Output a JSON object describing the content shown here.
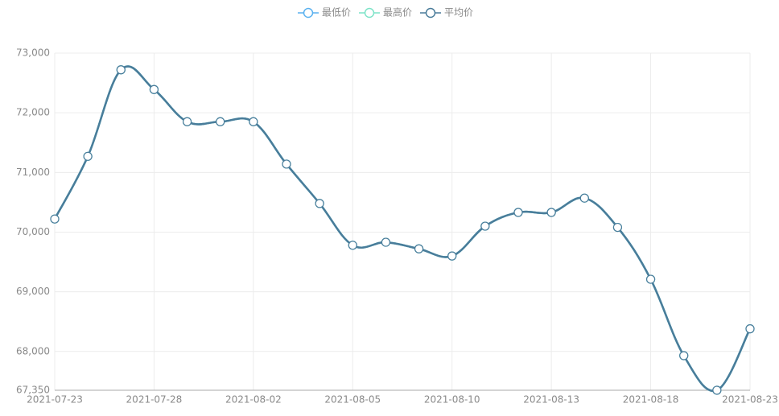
{
  "chart_data": {
    "type": "line",
    "categories": [
      "2021-07-23",
      null,
      null,
      "2021-07-28",
      null,
      null,
      "2021-08-02",
      null,
      null,
      "2021-08-05",
      null,
      null,
      "2021-08-10",
      null,
      null,
      "2021-08-13",
      null,
      null,
      "2021-08-18",
      null,
      null,
      "2021-08-23"
    ],
    "series": [
      {
        "name": "最低价",
        "color": "#5ab1ef",
        "values": [
          70220,
          71270,
          72720,
          72390,
          71850,
          71850,
          71850,
          71140,
          70480,
          69780,
          69830,
          69720,
          69600,
          70100,
          70330,
          70330,
          70570,
          70080,
          69210,
          67930,
          67350,
          68380
        ]
      },
      {
        "name": "最高价",
        "color": "#7ee3c8",
        "values": [
          70220,
          71270,
          72720,
          72390,
          71850,
          71850,
          71850,
          71140,
          70480,
          69780,
          69830,
          69720,
          69600,
          70100,
          70330,
          70330,
          70570,
          70080,
          69210,
          67930,
          67350,
          68380
        ]
      },
      {
        "name": "平均价",
        "color": "#4a7c9a",
        "values": [
          70220,
          71270,
          72720,
          72390,
          71850,
          71850,
          71850,
          71140,
          70480,
          69780,
          69830,
          69720,
          69600,
          70100,
          70330,
          70330,
          70570,
          70080,
          69210,
          67930,
          67350,
          68380
        ]
      }
    ],
    "ylim": [
      67350,
      73000
    ],
    "yticks": [
      {
        "value": 67350,
        "label": "67,350"
      },
      {
        "value": 68000,
        "label": "68,000"
      },
      {
        "value": 69000,
        "label": "69,000"
      },
      {
        "value": 70000,
        "label": "70,000"
      },
      {
        "value": 71000,
        "label": "71,000"
      },
      {
        "value": 72000,
        "label": "72,000"
      },
      {
        "value": 73000,
        "label": "73,000"
      }
    ],
    "grid": true
  }
}
